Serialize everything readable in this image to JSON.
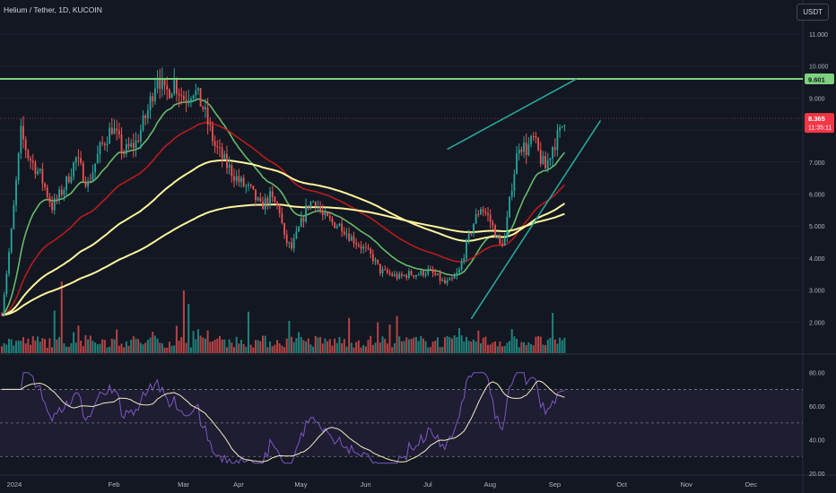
{
  "header": {
    "symbol_line": "Helium / Tether, 1D, KUCOIN"
  },
  "currency_button": "USDT",
  "colors": {
    "background": "#131722",
    "up": "#26a69a",
    "down": "#ef5350",
    "ema_green": "#66bb6a",
    "ema_red": "#b71c1c",
    "ema_yellow": "#fff59d",
    "level_line": "#7ed17e",
    "channel": "#26a69a",
    "rsi_line": "#7e57c2",
    "rsi_ma": "#f3eec3"
  },
  "chart_data": {
    "type": "candlestick",
    "price_axis": {
      "ticks": [
        "11.000",
        "10.000",
        "9.000",
        "8.000",
        "7.000",
        "6.000",
        "5.000",
        "4.000",
        "3.000",
        "2.000"
      ],
      "range": [
        1.0,
        11.9
      ]
    },
    "time_axis": {
      "labels": [
        "2024",
        "Feb",
        "Mar",
        "Apr",
        "May",
        "Jun",
        "Jul",
        "Aug",
        "Sep",
        "Oct",
        "Nov",
        "Dec"
      ]
    },
    "price_anchors": [
      [
        0,
        2.3
      ],
      [
        4,
        4.8
      ],
      [
        8,
        7.9
      ],
      [
        11,
        7.2
      ],
      [
        16,
        6.6
      ],
      [
        21,
        5.6
      ],
      [
        26,
        6.2
      ],
      [
        31,
        7.1
      ],
      [
        36,
        6.3
      ],
      [
        41,
        7.4
      ],
      [
        46,
        8.1
      ],
      [
        51,
        7.3
      ],
      [
        56,
        7.6
      ],
      [
        61,
        8.6
      ],
      [
        65,
        9.8
      ],
      [
        68,
        9.1
      ],
      [
        72,
        9.5
      ],
      [
        76,
        9.0
      ],
      [
        80,
        9.3
      ],
      [
        84,
        8.7
      ],
      [
        89,
        7.5
      ],
      [
        94,
        6.9
      ],
      [
        99,
        6.4
      ],
      [
        104,
        6.1
      ],
      [
        108,
        5.6
      ],
      [
        112,
        5.9
      ],
      [
        116,
        5.5
      ],
      [
        118,
        4.6
      ],
      [
        121,
        4.3
      ],
      [
        124,
        4.9
      ],
      [
        128,
        5.7
      ],
      [
        131,
        5.8
      ],
      [
        134,
        5.3
      ],
      [
        138,
        5.1
      ],
      [
        142,
        5.0
      ],
      [
        145,
        4.7
      ],
      [
        148,
        4.5
      ],
      [
        151,
        4.3
      ],
      [
        155,
        4.0
      ],
      [
        158,
        3.6
      ],
      [
        162,
        3.5
      ],
      [
        166,
        3.4
      ],
      [
        170,
        3.5
      ],
      [
        174,
        3.5
      ],
      [
        178,
        3.6
      ],
      [
        182,
        3.4
      ],
      [
        185,
        3.2
      ],
      [
        188,
        3.3
      ],
      [
        191,
        3.6
      ],
      [
        194,
        4.4
      ],
      [
        197,
        5.1
      ],
      [
        200,
        5.6
      ],
      [
        203,
        5.3
      ],
      [
        206,
        4.8
      ],
      [
        208,
        4.4
      ],
      [
        210,
        4.6
      ],
      [
        213,
        6.3
      ],
      [
        216,
        7.6
      ],
      [
        219,
        7.4
      ],
      [
        222,
        7.7
      ],
      [
        225,
        7.1
      ],
      [
        227,
        6.8
      ],
      [
        230,
        7.5
      ],
      [
        233,
        7.9
      ],
      [
        235,
        8.4
      ]
    ],
    "last_price": "8.365",
    "countdown": "11:35:11",
    "horizontal_level": {
      "value": 9.601,
      "label": "9.601"
    },
    "channel": {
      "upper": [
        [
          186,
          7.4
        ],
        [
          240,
          9.6
        ]
      ],
      "lower": [
        [
          196,
          2.1
        ],
        [
          250,
          8.3
        ]
      ]
    },
    "emas": [
      {
        "kind": "green",
        "period": 20
      },
      {
        "kind": "red",
        "period": 50
      },
      {
        "kind": "yellow",
        "period": 100
      },
      {
        "kind": "yellow",
        "period": 200
      }
    ],
    "rsi": {
      "axis_ticks": [
        "80.00",
        "60.00",
        "40.00",
        "20.00"
      ],
      "upper_band": 70,
      "lower_band": 30,
      "mid": 50,
      "range": [
        20,
        82
      ]
    }
  }
}
